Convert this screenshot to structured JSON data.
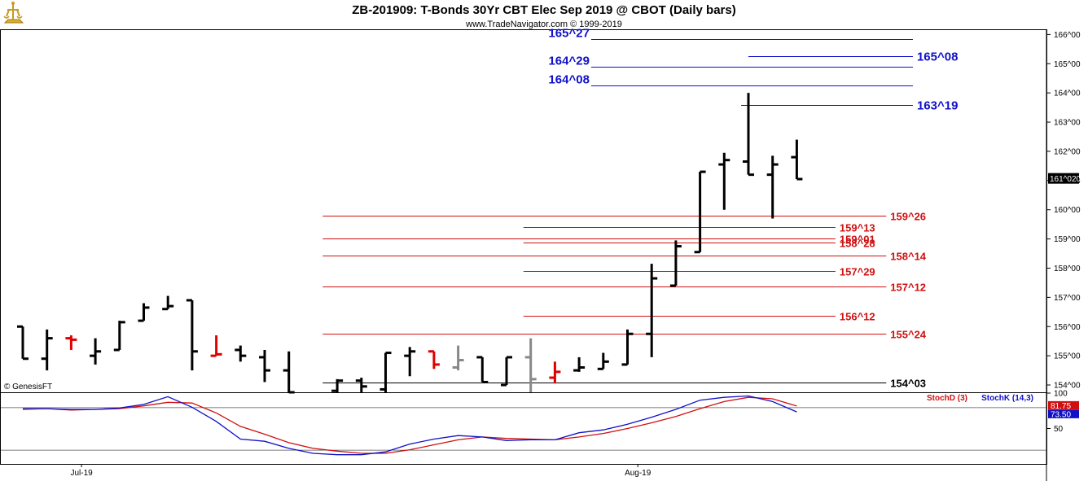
{
  "header": {
    "title": "ZB-201909:  T-Bonds 30Yr CBT Elec Sep 2019 @ CBOT  (Daily bars)",
    "subtitle": "www.TradeNavigator.com © 1999-2019"
  },
  "watermark": "© GenesisFT",
  "colors": {
    "bar": "#000000",
    "bar_red": "#e00000",
    "bar_gray": "#888888",
    "level_blue": "#1010c8",
    "level_red": "#d01010",
    "level_black": "#000000",
    "stoch_d": "#d01010",
    "stoch_k": "#1010c8",
    "price_badge_bg": "#000000",
    "stoch_badge_bg": "#d01010"
  },
  "chart_data": {
    "type": "ohlc",
    "ylim": [
      153.75,
      166.15
    ],
    "y_ticks": [
      {
        "v": 154,
        "label": "154^00"
      },
      {
        "v": 155,
        "label": "155^00"
      },
      {
        "v": 156,
        "label": "156^00"
      },
      {
        "v": 157,
        "label": "157^00"
      },
      {
        "v": 158,
        "label": "158^00"
      },
      {
        "v": 159,
        "label": "159^00"
      },
      {
        "v": 160,
        "label": "160^00"
      },
      {
        "v": 161,
        "label": "161^00"
      },
      {
        "v": 162,
        "label": "162^00"
      },
      {
        "v": 163,
        "label": "163^00"
      },
      {
        "v": 164,
        "label": "164^00"
      },
      {
        "v": 165,
        "label": "165^00"
      },
      {
        "v": 166,
        "label": "166^00"
      }
    ],
    "last_price_label": "161^020",
    "last_price": 161.06,
    "x_labels": [
      {
        "i": 3,
        "label": "Jul-19"
      },
      {
        "i": 26,
        "label": "Aug-19"
      }
    ],
    "bars": [
      {
        "i": 0,
        "o": 156.0,
        "h": 156.0,
        "l": 154.9,
        "c": 154.9,
        "col": "bar"
      },
      {
        "i": 1,
        "o": 154.9,
        "h": 155.9,
        "l": 154.5,
        "c": 155.6,
        "col": "bar"
      },
      {
        "i": 2,
        "o": 155.6,
        "h": 155.7,
        "l": 155.2,
        "c": 155.55,
        "col": "bar_red"
      },
      {
        "i": 3,
        "o": 155.0,
        "h": 155.6,
        "l": 154.7,
        "c": 155.15,
        "col": "bar"
      },
      {
        "i": 4,
        "o": 155.2,
        "h": 156.2,
        "l": 155.2,
        "c": 156.15,
        "col": "bar"
      },
      {
        "i": 5,
        "o": 156.2,
        "h": 156.8,
        "l": 156.2,
        "c": 156.65,
        "col": "bar"
      },
      {
        "i": 6,
        "o": 156.6,
        "h": 157.05,
        "l": 156.6,
        "c": 156.7,
        "col": "bar"
      },
      {
        "i": 7,
        "o": 156.9,
        "h": 156.9,
        "l": 154.5,
        "c": 155.15,
        "col": "bar"
      },
      {
        "i": 8,
        "o": 155.0,
        "h": 155.7,
        "l": 155.0,
        "c": 155.05,
        "col": "bar_red"
      },
      {
        "i": 9,
        "o": 155.2,
        "h": 155.35,
        "l": 154.8,
        "c": 155.0,
        "col": "bar"
      },
      {
        "i": 10,
        "o": 154.95,
        "h": 155.2,
        "l": 154.1,
        "c": 154.5,
        "col": "bar"
      },
      {
        "i": 11,
        "o": 154.5,
        "h": 155.15,
        "l": 153.75,
        "c": 153.75,
        "col": "bar"
      },
      {
        "i": 13,
        "o": 153.8,
        "h": 154.2,
        "l": 153.75,
        "c": 154.15,
        "col": "bar"
      },
      {
        "i": 14,
        "o": 154.15,
        "h": 154.25,
        "l": 153.75,
        "c": 153.95,
        "col": "bar"
      },
      {
        "i": 15,
        "o": 153.85,
        "h": 155.1,
        "l": 153.75,
        "c": 155.1,
        "col": "bar"
      },
      {
        "i": 16,
        "o": 155.0,
        "h": 155.3,
        "l": 154.3,
        "c": 155.15,
        "col": "bar"
      },
      {
        "i": 17,
        "o": 155.15,
        "h": 155.15,
        "l": 154.55,
        "c": 154.7,
        "col": "bar_red"
      },
      {
        "i": 18,
        "o": 154.6,
        "h": 155.35,
        "l": 154.5,
        "c": 154.85,
        "col": "bar_gray"
      },
      {
        "i": 19,
        "o": 154.95,
        "h": 154.95,
        "l": 154.1,
        "c": 154.1,
        "col": "bar"
      },
      {
        "i": 20,
        "o": 154.0,
        "h": 154.95,
        "l": 154.0,
        "c": 154.95,
        "col": "bar"
      },
      {
        "i": 21,
        "o": 154.95,
        "h": 155.6,
        "l": 153.75,
        "c": 154.2,
        "col": "bar_gray"
      },
      {
        "i": 22,
        "o": 154.25,
        "h": 154.8,
        "l": 154.05,
        "c": 154.45,
        "col": "bar_red"
      },
      {
        "i": 23,
        "o": 154.5,
        "h": 154.95,
        "l": 154.45,
        "c": 154.6,
        "col": "bar"
      },
      {
        "i": 24,
        "o": 154.55,
        "h": 155.1,
        "l": 154.55,
        "c": 154.8,
        "col": "bar"
      },
      {
        "i": 25,
        "o": 154.7,
        "h": 155.9,
        "l": 154.7,
        "c": 155.75,
        "col": "bar"
      },
      {
        "i": 26,
        "o": 155.75,
        "h": 158.15,
        "l": 154.95,
        "c": 157.65,
        "col": "bar"
      },
      {
        "i": 27,
        "o": 157.4,
        "h": 158.95,
        "l": 157.4,
        "c": 158.75,
        "col": "bar"
      },
      {
        "i": 28,
        "o": 158.55,
        "h": 161.3,
        "l": 158.55,
        "c": 161.3,
        "col": "bar"
      },
      {
        "i": 29,
        "o": 161.55,
        "h": 161.95,
        "l": 160.0,
        "c": 161.7,
        "col": "bar"
      },
      {
        "i": 30,
        "o": 161.65,
        "h": 164.0,
        "l": 161.2,
        "c": 161.2,
        "col": "bar"
      },
      {
        "i": 31,
        "o": 161.2,
        "h": 161.85,
        "l": 159.7,
        "c": 161.55,
        "col": "bar"
      },
      {
        "i": 32,
        "o": 161.8,
        "h": 162.4,
        "l": 161.05,
        "c": 161.05,
        "col": "bar"
      }
    ],
    "levels": [
      {
        "label": "165^27",
        "v": 165.84,
        "color": "level_blue",
        "x0": 23.5,
        "x1": 36.8,
        "side": "left",
        "style": "blue"
      },
      {
        "label": "164^29",
        "v": 164.91,
        "color": "level_blue",
        "x0": 23.5,
        "x1": 36.8,
        "side": "left",
        "style": "blue"
      },
      {
        "label": "165^08",
        "v": 165.25,
        "color": "level_blue",
        "x0": 30.0,
        "x1": 36.8,
        "side": "right",
        "style": "blue"
      },
      {
        "label": "164^08",
        "v": 164.25,
        "color": "level_blue",
        "x0": 23.5,
        "x1": 36.8,
        "side": "left",
        "style": "blue"
      },
      {
        "label": "163^19",
        "v": 163.59,
        "color": "level_blue",
        "x0": 29.7,
        "x1": 36.8,
        "side": "right",
        "style": "blue"
      },
      {
        "label": "159^26",
        "v": 159.81,
        "color": "level_red",
        "x0": 12.4,
        "x1": 35.7,
        "side": "right",
        "style": "red"
      },
      {
        "label": "159^13",
        "v": 159.41,
        "color": "level_red",
        "x0": 20.7,
        "x1": 33.6,
        "side": "right",
        "style": "red"
      },
      {
        "label": "159^01",
        "v": 159.03,
        "color": "level_red",
        "x0": 12.4,
        "x1": 33.6,
        "side": "right",
        "style": "red"
      },
      {
        "label": "158^28",
        "v": 158.87,
        "color": "level_red",
        "x0": 20.7,
        "x1": 33.6,
        "side": "right",
        "style": "red"
      },
      {
        "label": "158^14",
        "v": 158.44,
        "color": "level_red",
        "x0": 12.4,
        "x1": 35.7,
        "side": "right",
        "style": "red"
      },
      {
        "label": "157^29",
        "v": 157.91,
        "color": "level_red",
        "x0": 20.7,
        "x1": 33.6,
        "side": "right",
        "style": "red"
      },
      {
        "label": "157^12",
        "v": 157.38,
        "color": "level_red",
        "x0": 12.4,
        "x1": 35.7,
        "side": "right",
        "style": "red"
      },
      {
        "label": "156^12",
        "v": 156.38,
        "color": "level_red",
        "x0": 20.7,
        "x1": 33.6,
        "side": "right",
        "style": "red"
      },
      {
        "label": "155^24",
        "v": 155.75,
        "color": "level_red",
        "x0": 12.4,
        "x1": 35.7,
        "side": "right",
        "style": "red"
      },
      {
        "label": "154^03",
        "v": 154.09,
        "color": "level_black",
        "x0": 12.4,
        "x1": 35.7,
        "side": "right",
        "style": "black"
      }
    ],
    "indicator": {
      "name_d": "StochD (3)",
      "name_k": "StochK (14,3)",
      "ylim": [
        0,
        100
      ],
      "ticks": [
        {
          "v": 100,
          "label": "100"
        },
        {
          "v": 50,
          "label": "50"
        }
      ],
      "ref_lines": [
        80,
        20
      ],
      "badge_d": "81.75",
      "badge_k": "73.50",
      "badge_d_v": 81.75,
      "stoch_k": [
        78,
        78,
        77,
        77,
        79,
        84,
        95,
        80,
        60,
        35,
        32,
        22,
        15,
        13,
        13,
        17,
        28,
        35,
        40,
        38,
        33,
        34,
        34,
        44,
        48,
        56,
        66,
        77,
        90,
        94,
        96,
        88,
        73.5
      ],
      "stoch_d": [
        77,
        78,
        76,
        77,
        78,
        82,
        87,
        86,
        72,
        53,
        42,
        30,
        22,
        18,
        15,
        15,
        20,
        27,
        34,
        38,
        36,
        35,
        34,
        38,
        43,
        50,
        58,
        67,
        78,
        88,
        94,
        92,
        81.75
      ]
    }
  }
}
